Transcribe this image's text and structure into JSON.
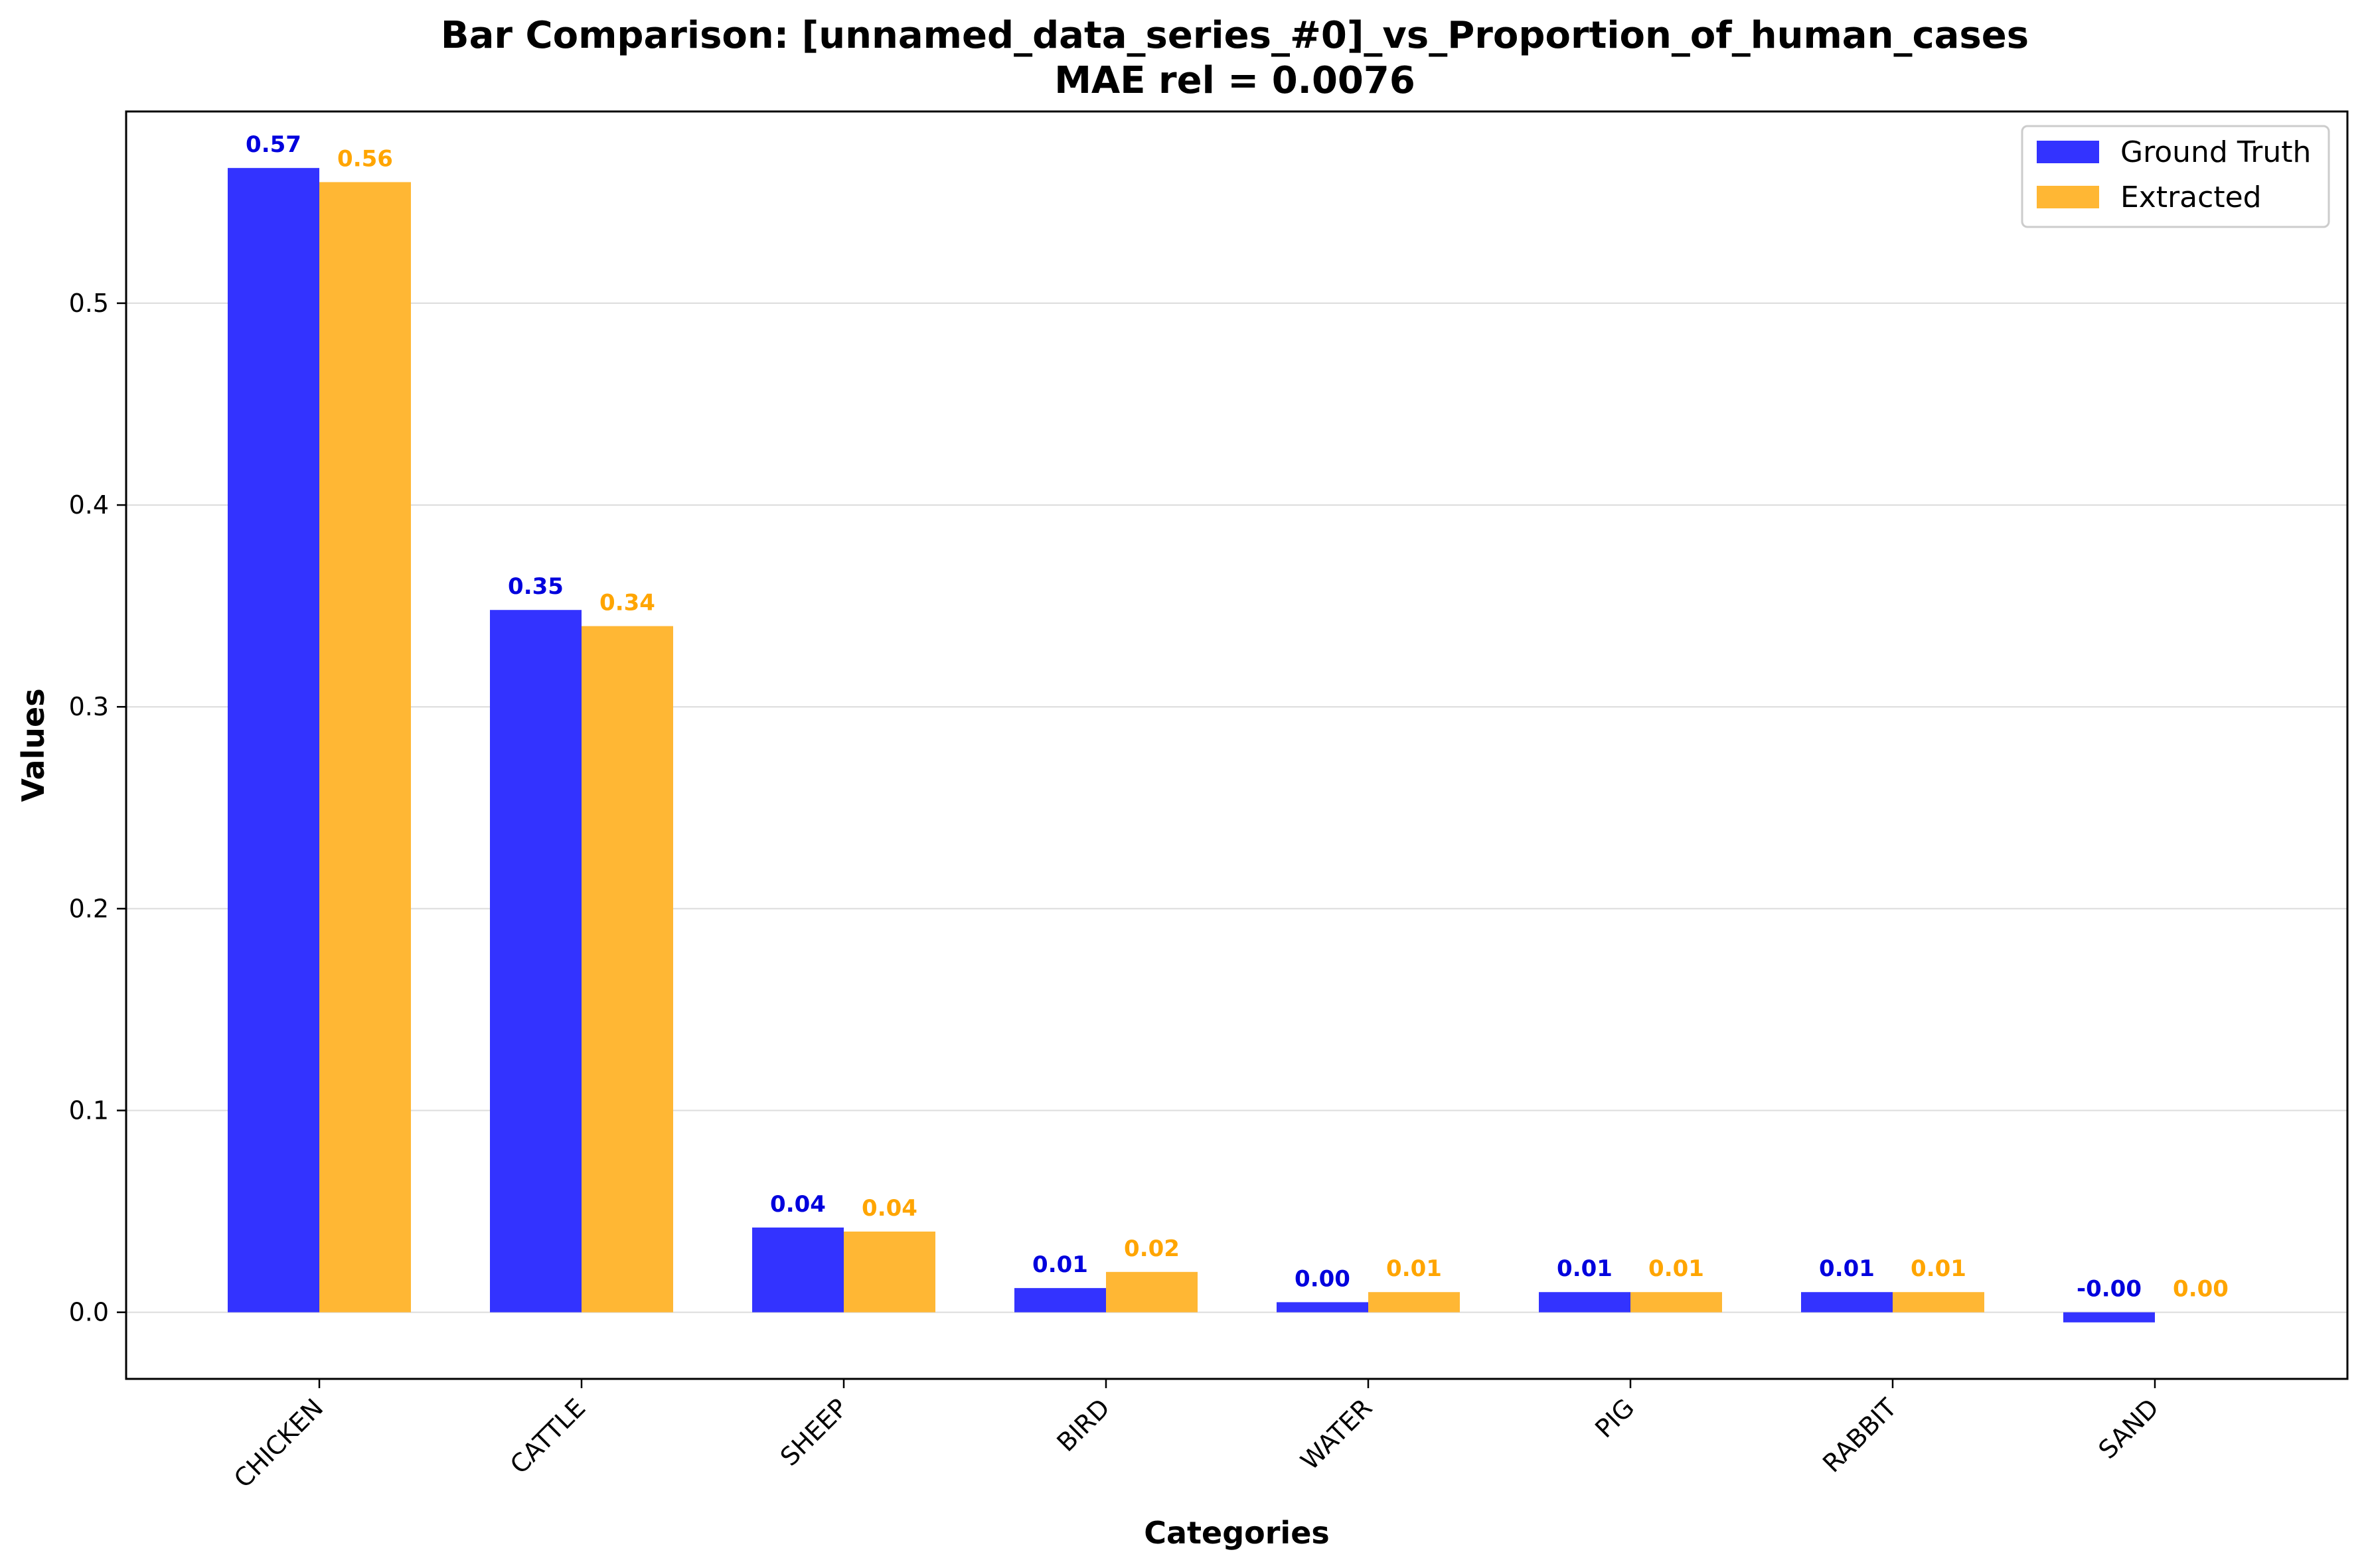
{
  "chart_data": {
    "type": "bar",
    "title": "Bar Comparison: [unnamed_data_series_#0]_vs_Proportion_of_human_cases",
    "subtitle": "MAE rel = 0.0076",
    "xlabel": "Categories",
    "ylabel": "Values",
    "categories": [
      "CHICKEN",
      "CATTLE",
      "SHEEP",
      "BIRD",
      "WATER",
      "PIG",
      "RABBIT",
      "SAND"
    ],
    "series": [
      {
        "name": "Ground Truth",
        "color": "#3333ff",
        "label_color": "#0000dd",
        "values": [
          0.567,
          0.348,
          0.042,
          0.012,
          0.005,
          0.01,
          0.01,
          -0.005
        ],
        "labels": [
          "0.57",
          "0.35",
          "0.04",
          "0.01",
          "0.00",
          "0.01",
          "0.01",
          "-0.00"
        ]
      },
      {
        "name": "Extracted",
        "color": "#ffb734",
        "label_color": "#ffa500",
        "values": [
          0.56,
          0.34,
          0.04,
          0.02,
          0.01,
          0.01,
          0.01,
          0.0
        ],
        "labels": [
          "0.56",
          "0.34",
          "0.04",
          "0.02",
          "0.01",
          "0.01",
          "0.01",
          "0.00"
        ]
      }
    ],
    "ylim": [
      -0.033,
      0.595
    ],
    "yticks": [
      0.0,
      0.1,
      0.2,
      0.3,
      0.4,
      0.5
    ],
    "ytick_labels": [
      "0.0",
      "0.1",
      "0.2",
      "0.3",
      "0.4",
      "0.5"
    ],
    "grid": "horizontal",
    "legend_position": "top-right"
  }
}
